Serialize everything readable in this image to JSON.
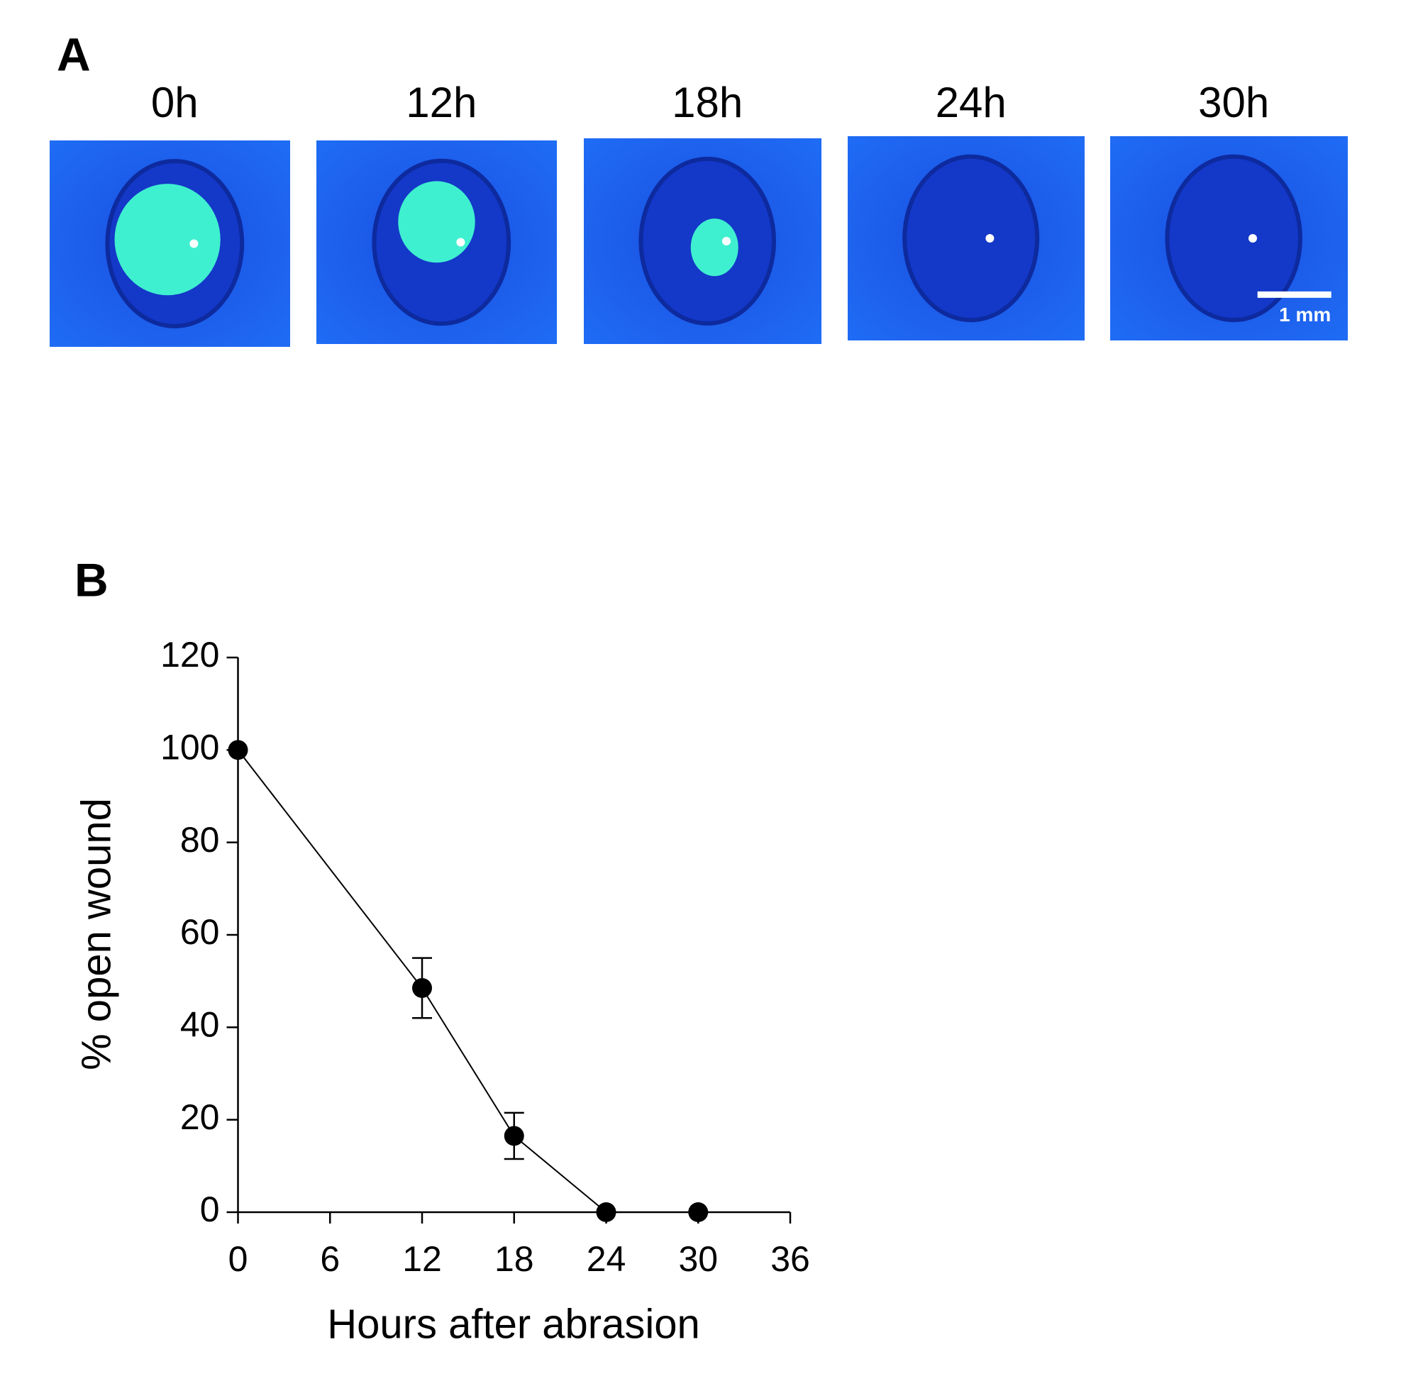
{
  "panel_a": {
    "label": "A",
    "times": [
      "0h",
      "12h",
      "18h",
      "24h",
      "30h"
    ],
    "scale_bar": "1 mm"
  },
  "chart_data": {
    "type": "line",
    "panel_label": "B",
    "x": [
      0,
      12,
      18,
      24,
      30
    ],
    "series": [
      {
        "color": "#000000",
        "values": [
          100,
          48.5,
          16.5,
          0,
          0
        ],
        "errors": [
          0,
          6.5,
          5,
          0,
          0
        ]
      }
    ],
    "xlabel": "Hours after abrasion",
    "ylabel": "% open wound",
    "xlim": [
      0,
      36
    ],
    "xticks": [
      0,
      6,
      12,
      18,
      24,
      30,
      36
    ],
    "ylim": [
      0,
      120
    ],
    "yticks": [
      0,
      20,
      40,
      60,
      80,
      100,
      120
    ]
  }
}
